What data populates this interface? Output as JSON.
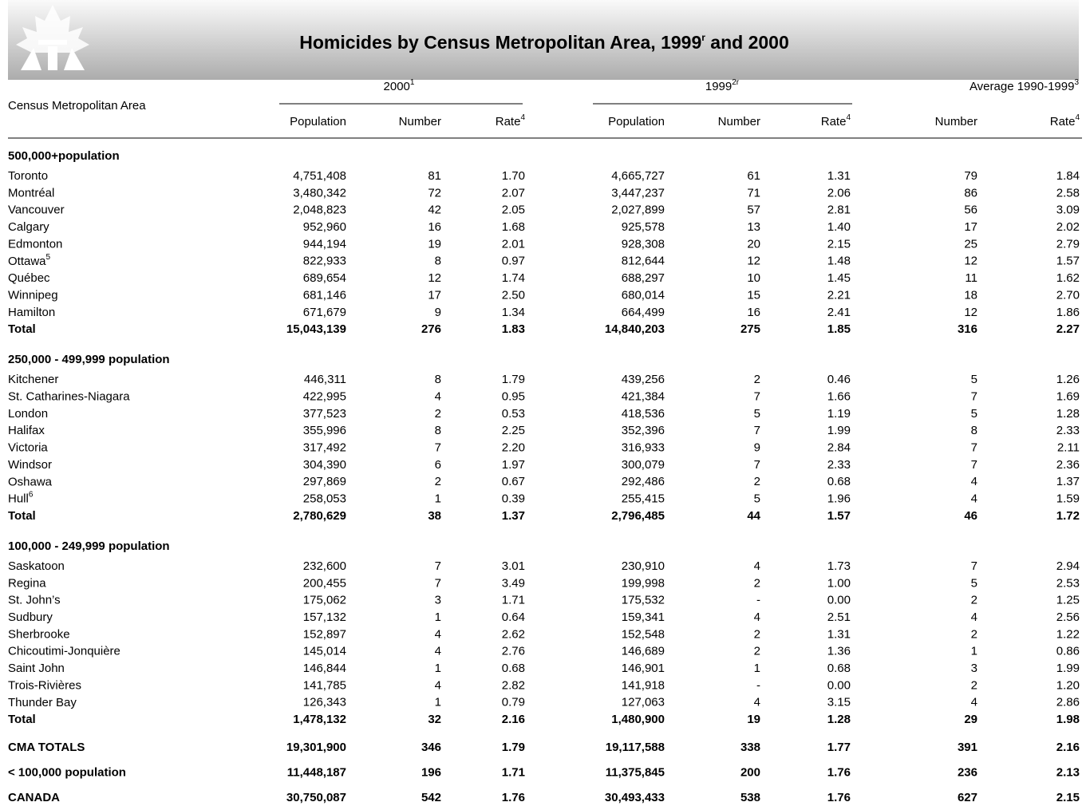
{
  "header": {
    "title": "Homicides by Census Metropolitan Area, 1999",
    "title_note": "r",
    "title_end": " and 2000"
  },
  "table": {
    "row_header": "Census Metropolitan Area",
    "groups": [
      {
        "label": "2000",
        "note": "1"
      },
      {
        "label": "1999",
        "note": "2r"
      },
      {
        "label": "Average 1990-1999",
        "note": "3"
      }
    ],
    "columns": [
      {
        "label": "Population"
      },
      {
        "label": "Number"
      },
      {
        "label": "Rate",
        "note": "4"
      },
      {
        "label": "Population"
      },
      {
        "label": "Number"
      },
      {
        "label": "Rate",
        "note": "4"
      },
      {
        "label": "Number"
      },
      {
        "label": "Rate",
        "note": "4"
      }
    ],
    "sections": [
      {
        "heading": "500,000+population",
        "rows": [
          {
            "name": "Toronto",
            "cells": [
              "4,751,408",
              "81",
              "1.70",
              "4,665,727",
              "61",
              "1.31",
              "79",
              "1.84"
            ]
          },
          {
            "name": "Montréal",
            "cells": [
              "3,480,342",
              "72",
              "2.07",
              "3,447,237",
              "71",
              "2.06",
              "86",
              "2.58"
            ]
          },
          {
            "name": "Vancouver",
            "cells": [
              "2,048,823",
              "42",
              "2.05",
              "2,027,899",
              "57",
              "2.81",
              "56",
              "3.09"
            ]
          },
          {
            "name": "Calgary",
            "cells": [
              "952,960",
              "16",
              "1.68",
              "925,578",
              "13",
              "1.40",
              "17",
              "2.02"
            ]
          },
          {
            "name": "Edmonton",
            "cells": [
              "944,194",
              "19",
              "2.01",
              "928,308",
              "20",
              "2.15",
              "25",
              "2.79"
            ]
          },
          {
            "name": "Ottawa",
            "note": "5",
            "cells": [
              "822,933",
              "8",
              "0.97",
              "812,644",
              "12",
              "1.48",
              "12",
              "1.57"
            ]
          },
          {
            "name": "Québec",
            "cells": [
              "689,654",
              "12",
              "1.74",
              "688,297",
              "10",
              "1.45",
              "11",
              "1.62"
            ]
          },
          {
            "name": "Winnipeg",
            "cells": [
              "681,146",
              "17",
              "2.50",
              "680,014",
              "15",
              "2.21",
              "18",
              "2.70"
            ]
          },
          {
            "name": "Hamilton",
            "cells": [
              "671,679",
              "9",
              "1.34",
              "664,499",
              "16",
              "2.41",
              "12",
              "1.86"
            ]
          }
        ],
        "total": {
          "name": "Total",
          "cells": [
            "15,043,139",
            "276",
            "1.83",
            "14,840,203",
            "275",
            "1.85",
            "316",
            "2.27"
          ]
        }
      },
      {
        "heading": "250,000 - 499,999 population",
        "rows": [
          {
            "name": "Kitchener",
            "cells": [
              "446,311",
              "8",
              "1.79",
              "439,256",
              "2",
              "0.46",
              "5",
              "1.26"
            ]
          },
          {
            "name": "St. Catharines-Niagara",
            "cells": [
              "422,995",
              "4",
              "0.95",
              "421,384",
              "7",
              "1.66",
              "7",
              "1.69"
            ]
          },
          {
            "name": "London",
            "cells": [
              "377,523",
              "2",
              "0.53",
              "418,536",
              "5",
              "1.19",
              "5",
              "1.28"
            ]
          },
          {
            "name": "Halifax",
            "cells": [
              "355,996",
              "8",
              "2.25",
              "352,396",
              "7",
              "1.99",
              "8",
              "2.33"
            ]
          },
          {
            "name": "Victoria",
            "cells": [
              "317,492",
              "7",
              "2.20",
              "316,933",
              "9",
              "2.84",
              "7",
              "2.11"
            ]
          },
          {
            "name": "Windsor",
            "cells": [
              "304,390",
              "6",
              "1.97",
              "300,079",
              "7",
              "2.33",
              "7",
              "2.36"
            ]
          },
          {
            "name": "Oshawa",
            "cells": [
              "297,869",
              "2",
              "0.67",
              "292,486",
              "2",
              "0.68",
              "4",
              "1.37"
            ]
          },
          {
            "name": "Hull",
            "note": "6",
            "cells": [
              "258,053",
              "1",
              "0.39",
              "255,415",
              "5",
              "1.96",
              "4",
              "1.59"
            ]
          }
        ],
        "total": {
          "name": "Total",
          "cells": [
            "2,780,629",
            "38",
            "1.37",
            "2,796,485",
            "44",
            "1.57",
            "46",
            "1.72"
          ]
        }
      },
      {
        "heading": "100,000 - 249,999 population",
        "rows": [
          {
            "name": "Saskatoon",
            "cells": [
              "232,600",
              "7",
              "3.01",
              "230,910",
              "4",
              "1.73",
              "7",
              "2.94"
            ]
          },
          {
            "name": "Regina",
            "cells": [
              "200,455",
              "7",
              "3.49",
              "199,998",
              "2",
              "1.00",
              "5",
              "2.53"
            ]
          },
          {
            "name": "St. John’s",
            "cells": [
              "175,062",
              "3",
              "1.71",
              "175,532",
              "-",
              "0.00",
              "2",
              "1.25"
            ]
          },
          {
            "name": "Sudbury",
            "cells": [
              "157,132",
              "1",
              "0.64",
              "159,341",
              "4",
              "2.51",
              "4",
              "2.56"
            ]
          },
          {
            "name": "Sherbrooke",
            "cells": [
              "152,897",
              "4",
              "2.62",
              "152,548",
              "2",
              "1.31",
              "2",
              "1.22"
            ]
          },
          {
            "name": "Chicoutimi-Jonquière",
            "cells": [
              "145,014",
              "4",
              "2.76",
              "146,689",
              "2",
              "1.36",
              "1",
              "0.86"
            ]
          },
          {
            "name": "Saint John",
            "cells": [
              "146,844",
              "1",
              "0.68",
              "146,901",
              "1",
              "0.68",
              "3",
              "1.99"
            ]
          },
          {
            "name": "Trois-Rivières",
            "cells": [
              "141,785",
              "4",
              "2.82",
              "141,918",
              "-",
              "0.00",
              "2",
              "1.20"
            ]
          },
          {
            "name": "Thunder Bay",
            "cells": [
              "126,343",
              "1",
              "0.79",
              "127,063",
              "4",
              "3.15",
              "4",
              "2.86"
            ]
          }
        ],
        "total": {
          "name": "Total",
          "cells": [
            "1,478,132",
            "32",
            "2.16",
            "1,480,900",
            "19",
            "1.28",
            "29",
            "1.98"
          ]
        }
      }
    ],
    "summary": [
      {
        "name": "CMA TOTALS",
        "cells": [
          "19,301,900",
          "346",
          "1.79",
          "19,117,588",
          "338",
          "1.77",
          "391",
          "2.16"
        ]
      },
      {
        "name": "< 100,000 population",
        "cells": [
          "11,448,187",
          "196",
          "1.71",
          "11,375,845",
          "200",
          "1.76",
          "236",
          "2.13"
        ]
      },
      {
        "name": "CANADA",
        "cells": [
          "30,750,087",
          "542",
          "1.76",
          "30,493,433",
          "538",
          "1.76",
          "627",
          "2.15"
        ]
      }
    ]
  }
}
